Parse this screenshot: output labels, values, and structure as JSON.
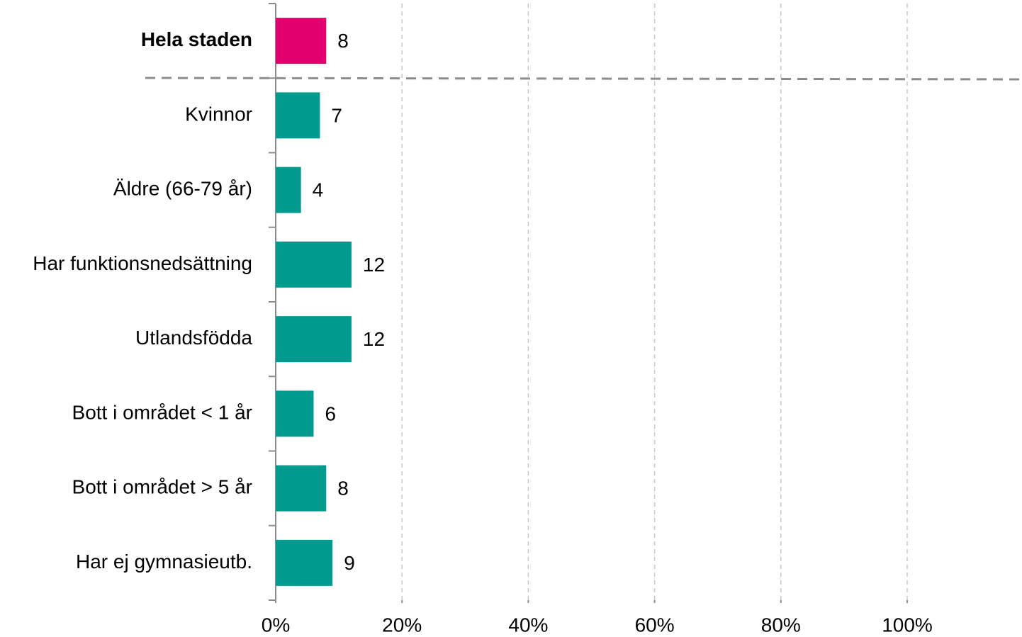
{
  "chart_data": {
    "type": "barh",
    "categories": [
      "Hela staden",
      "Kvinnor",
      "Äldre (66-79 år)",
      "Har funktionsnedsättning",
      "Utlandsfödda",
      "Bott i området < 1 år",
      "Bott i området > 5 år",
      "Har ej gymnasieutb."
    ],
    "values": [
      8,
      7,
      4,
      12,
      12,
      6,
      8,
      9
    ],
    "colors": [
      "#e2006f",
      "#009a8e",
      "#009a8e",
      "#009a8e",
      "#009a8e",
      "#009a8e",
      "#009a8e",
      "#009a8e"
    ],
    "xlim": [
      0,
      100
    ],
    "xticks": [
      {
        "value": 0,
        "label": "0%"
      },
      {
        "value": 20,
        "label": "20%"
      },
      {
        "value": 40,
        "label": "40%"
      },
      {
        "value": 60,
        "label": "60%"
      },
      {
        "value": 80,
        "label": "80%"
      },
      {
        "value": 100,
        "label": "100%"
      }
    ],
    "grid": true
  }
}
